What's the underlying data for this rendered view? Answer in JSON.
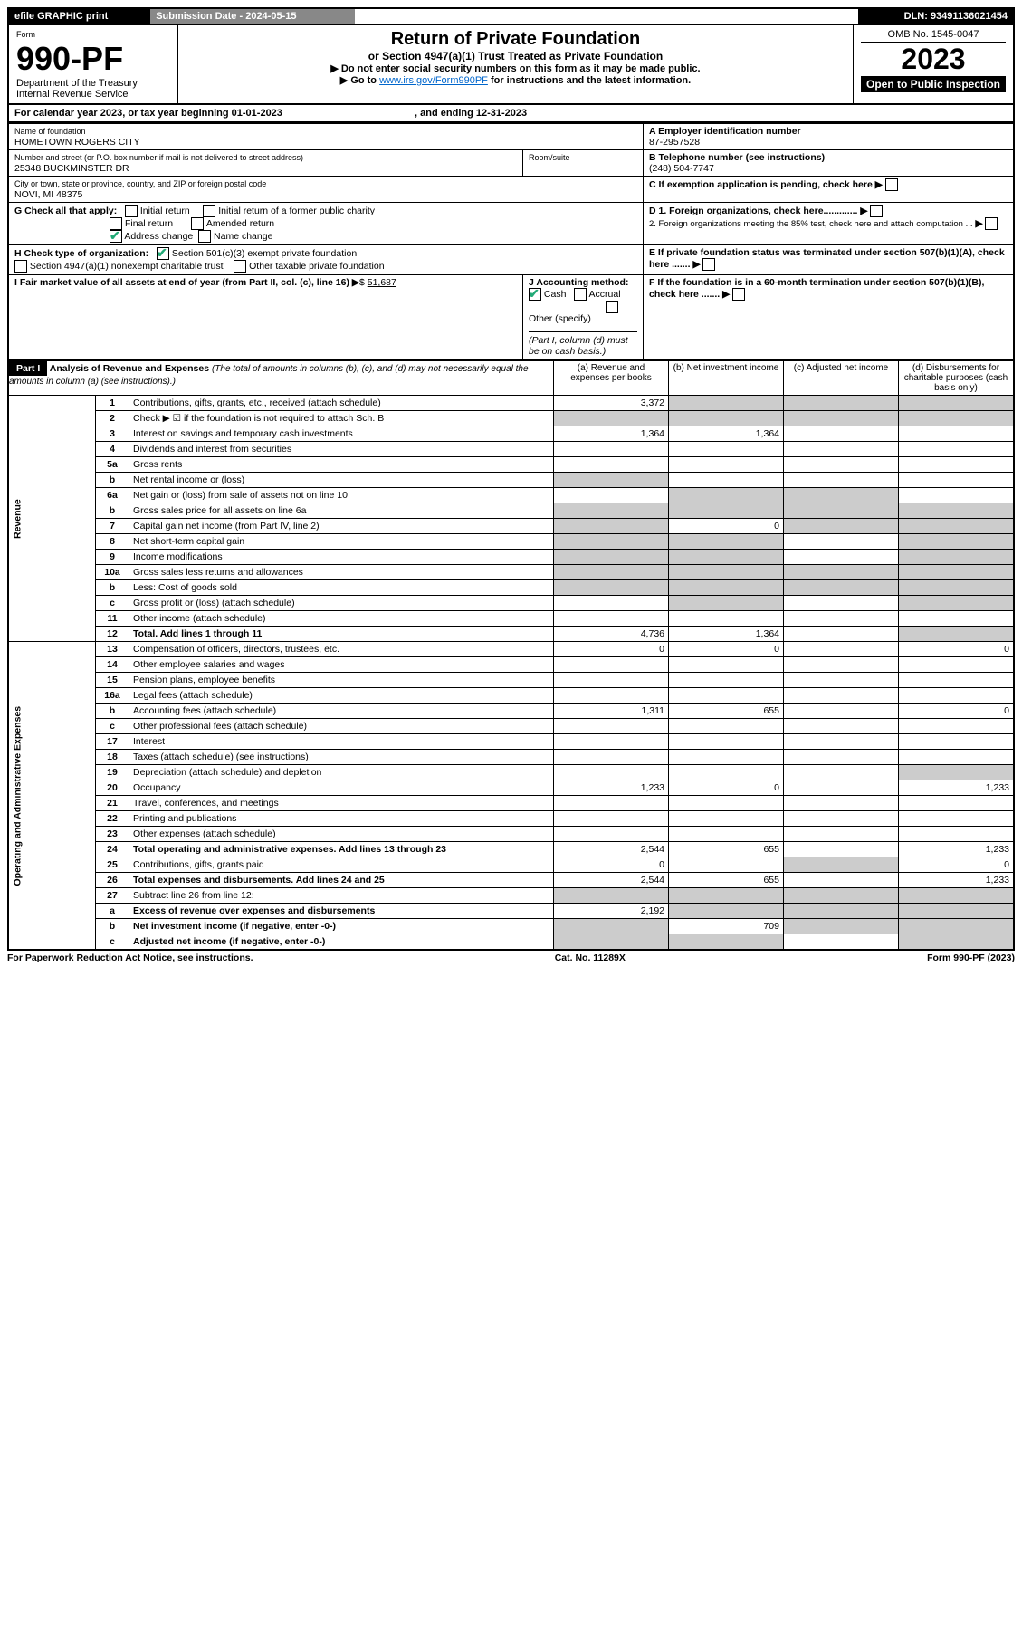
{
  "topBar": {
    "efile": "efile GRAPHIC print",
    "submission": "Submission Date - 2024-05-15",
    "dln": "DLN: 93491136021454"
  },
  "header": {
    "formLabel": "Form",
    "formNo": "990-PF",
    "dept": "Department of the Treasury",
    "irs": "Internal Revenue Service",
    "title": "Return of Private Foundation",
    "subtitle": "or Section 4947(a)(1) Trust Treated as Private Foundation",
    "instr1": "▶ Do not enter social security numbers on this form as it may be made public.",
    "instr2": "▶ Go to ",
    "instrLink": "www.irs.gov/Form990PF",
    "instr3": " for instructions and the latest information.",
    "omb": "OMB No. 1545-0047",
    "year": "2023",
    "open": "Open to Public Inspection"
  },
  "calYear": {
    "text": "For calendar year 2023, or tax year beginning 01-01-2023",
    "ending": ", and ending 12-31-2023"
  },
  "entity": {
    "nameLabel": "Name of foundation",
    "name": "HOMETOWN ROGERS CITY",
    "addrLabel": "Number and street (or P.O. box number if mail is not delivered to street address)",
    "addr": "25348 BUCKMINSTER DR",
    "roomLabel": "Room/suite",
    "cityLabel": "City or town, state or province, country, and ZIP or foreign postal code",
    "city": "NOVI, MI  48375",
    "einLabel": "A Employer identification number",
    "ein": "87-2957528",
    "telLabel": "B Telephone number (see instructions)",
    "tel": "(248) 504-7747",
    "cLabel": "C If exemption application is pending, check here",
    "d1": "D 1. Foreign organizations, check here.............",
    "d2": "2. Foreign organizations meeting the 85% test, check here and attach computation ...",
    "e": "E  If private foundation status was terminated under section 507(b)(1)(A), check here .......",
    "f": "F  If the foundation is in a 60-month termination under section 507(b)(1)(B), check here .......",
    "gLabel": "G Check all that apply:",
    "gInitial": "Initial return",
    "gInitialFormer": "Initial return of a former public charity",
    "gFinal": "Final return",
    "gAmended": "Amended return",
    "gAddress": "Address change",
    "gName": "Name change",
    "hLabel": "H Check type of organization:",
    "h501c3": "Section 501(c)(3) exempt private foundation",
    "h4947": "Section 4947(a)(1) nonexempt charitable trust",
    "hOther": "Other taxable private foundation",
    "iLabel": "I Fair market value of all assets at end of year (from Part II, col. (c), line 16)",
    "iValue": "51,687",
    "jLabel": "J Accounting method:",
    "jCash": "Cash",
    "jAccrual": "Accrual",
    "jOther": "Other (specify)",
    "jNote": "(Part I, column (d) must be on cash basis.)"
  },
  "part1": {
    "label": "Part I",
    "title": "Analysis of Revenue and Expenses",
    "titleNote": "(The total of amounts in columns (b), (c), and (d) may not necessarily equal the amounts in column (a) (see instructions).)",
    "colA": "(a)  Revenue and expenses per books",
    "colB": "(b)  Net investment income",
    "colC": "(c)  Adjusted net income",
    "colD": "(d)  Disbursements for charitable purposes (cash basis only)"
  },
  "side": {
    "revenue": "Revenue",
    "expenses": "Operating and Administrative Expenses"
  },
  "rows": [
    {
      "n": "1",
      "d": "Contributions, gifts, grants, etc., received (attach schedule)",
      "a": "3,372",
      "bs": true,
      "cs": true,
      "ds": true
    },
    {
      "n": "2",
      "d": "Check ▶ ☑ if the foundation is not required to attach Sch. B",
      "as": true,
      "bs": true,
      "cs": true,
      "ds": true,
      "bold": false
    },
    {
      "n": "3",
      "d": "Interest on savings and temporary cash investments",
      "a": "1,364",
      "b": "1,364"
    },
    {
      "n": "4",
      "d": "Dividends and interest from securities"
    },
    {
      "n": "5a",
      "d": "Gross rents"
    },
    {
      "n": "b",
      "d": "Net rental income or (loss)",
      "as": true,
      "cs": false,
      "ds": false
    },
    {
      "n": "6a",
      "d": "Net gain or (loss) from sale of assets not on line 10",
      "bs": true,
      "cs": true
    },
    {
      "n": "b",
      "d": "Gross sales price for all assets on line 6a",
      "as": true,
      "bs": true,
      "cs": true,
      "ds": true
    },
    {
      "n": "7",
      "d": "Capital gain net income (from Part IV, line 2)",
      "as": true,
      "b": "0",
      "cs": true,
      "ds": true
    },
    {
      "n": "8",
      "d": "Net short-term capital gain",
      "as": true,
      "bs": true,
      "ds": true
    },
    {
      "n": "9",
      "d": "Income modifications",
      "as": true,
      "bs": true,
      "ds": true
    },
    {
      "n": "10a",
      "d": "Gross sales less returns and allowances",
      "as": true,
      "bs": true,
      "cs": true,
      "ds": true
    },
    {
      "n": "b",
      "d": "Less: Cost of goods sold",
      "as": true,
      "bs": true,
      "cs": true,
      "ds": true
    },
    {
      "n": "c",
      "d": "Gross profit or (loss) (attach schedule)",
      "bs": true,
      "ds": true
    },
    {
      "n": "11",
      "d": "Other income (attach schedule)"
    },
    {
      "n": "12",
      "d": "Total. Add lines 1 through 11",
      "a": "4,736",
      "b": "1,364",
      "ds": true,
      "bold": true
    },
    {
      "n": "13",
      "d": "Compensation of officers, directors, trustees, etc.",
      "a": "0",
      "b": "0",
      "d2": "0"
    },
    {
      "n": "14",
      "d": "Other employee salaries and wages"
    },
    {
      "n": "15",
      "d": "Pension plans, employee benefits"
    },
    {
      "n": "16a",
      "d": "Legal fees (attach schedule)"
    },
    {
      "n": "b",
      "d": "Accounting fees (attach schedule)",
      "a": "1,311",
      "b": "655",
      "d2": "0"
    },
    {
      "n": "c",
      "d": "Other professional fees (attach schedule)"
    },
    {
      "n": "17",
      "d": "Interest"
    },
    {
      "n": "18",
      "d": "Taxes (attach schedule) (see instructions)"
    },
    {
      "n": "19",
      "d": "Depreciation (attach schedule) and depletion",
      "ds": true
    },
    {
      "n": "20",
      "d": "Occupancy",
      "a": "1,233",
      "b": "0",
      "d2": "1,233"
    },
    {
      "n": "21",
      "d": "Travel, conferences, and meetings"
    },
    {
      "n": "22",
      "d": "Printing and publications"
    },
    {
      "n": "23",
      "d": "Other expenses (attach schedule)"
    },
    {
      "n": "24",
      "d": "Total operating and administrative expenses. Add lines 13 through 23",
      "a": "2,544",
      "b": "655",
      "d2": "1,233",
      "bold": true
    },
    {
      "n": "25",
      "d": "Contributions, gifts, grants paid",
      "a": "0",
      "cs": true,
      "d2": "0"
    },
    {
      "n": "26",
      "d": "Total expenses and disbursements. Add lines 24 and 25",
      "a": "2,544",
      "b": "655",
      "d2": "1,233",
      "bold": true
    },
    {
      "n": "27",
      "d": "Subtract line 26 from line 12:",
      "as": true,
      "bs": true,
      "cs": true,
      "ds": true
    },
    {
      "n": "a",
      "d": "Excess of revenue over expenses and disbursements",
      "a": "2,192",
      "bs": true,
      "cs": true,
      "ds": true,
      "bold": true
    },
    {
      "n": "b",
      "d": "Net investment income (if negative, enter -0-)",
      "as": true,
      "b": "709",
      "cs": true,
      "ds": true,
      "bold": true
    },
    {
      "n": "c",
      "d": "Adjusted net income (if negative, enter -0-)",
      "as": true,
      "bs": true,
      "ds": true,
      "bold": true
    }
  ],
  "footer": {
    "left": "For Paperwork Reduction Act Notice, see instructions.",
    "mid": "Cat. No. 11289X",
    "right": "Form 990-PF (2023)"
  }
}
